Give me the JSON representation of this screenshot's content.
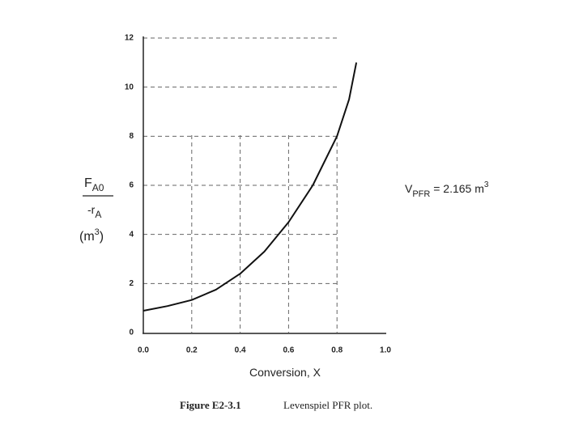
{
  "chart_data": {
    "type": "line",
    "x": [
      0,
      0.1,
      0.2,
      0.3,
      0.4,
      0.5,
      0.6,
      0.7,
      0.8,
      0.85,
      0.88
    ],
    "series": [
      {
        "color": "#111111",
        "values": [
          0.89,
          1.08,
          1.33,
          1.75,
          2.4,
          3.3,
          4.5,
          6.0,
          8.0,
          9.5,
          11.0
        ]
      }
    ],
    "xlim": [
      0,
      1.0
    ],
    "ylim": [
      0,
      12
    ],
    "xticks": [
      {
        "value": 0,
        "label": "0.0"
      },
      0.2,
      0.4,
      0.6,
      0.8,
      {
        "value": 1.0,
        "label": "1.0"
      }
    ],
    "yticks": [
      0,
      2,
      4,
      6,
      8,
      10,
      12
    ],
    "grid": true,
    "x_label": "Conversion, X",
    "y_label": {
      "numerator": [
        "F",
        "A0"
      ],
      "denominator": [
        "-r",
        "A"
      ],
      "units": [
        "(m",
        "3",
        ")"
      ]
    },
    "annotation": [
      "V",
      "PFR",
      " = 2.165 m",
      "3"
    ],
    "caption": {
      "label": "Figure E2-3.1",
      "text": "Levenspiel PFR plot."
    }
  }
}
